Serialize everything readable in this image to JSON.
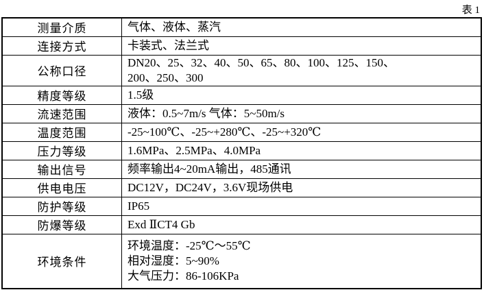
{
  "caption": "表 1",
  "rows": [
    {
      "label": "测量介质",
      "lines": [
        "气体、液体、蒸汽"
      ]
    },
    {
      "label": "连接方式",
      "lines": [
        "卡装式、法兰式"
      ]
    },
    {
      "label": "公称口径",
      "lines": [
        "DN20、25、32、40、50、65、80、100、125、150、",
        "200、250、300"
      ]
    },
    {
      "label": "精度等级",
      "lines": [
        "1.5级"
      ]
    },
    {
      "label": "流速范围",
      "lines": [
        "液体：0.5~7m/s 气体：5~50m/s"
      ]
    },
    {
      "label": "温度范围",
      "lines": [
        "-25~100℃、-25~+280℃、-25~+320℃"
      ]
    },
    {
      "label": "压力等级",
      "lines": [
        "1.6MPa、2.5MPa、4.0MPa"
      ]
    },
    {
      "label": "输出信号",
      "lines": [
        "频率输出4~20mA输出，485通讯"
      ]
    },
    {
      "label": "供电电压",
      "lines": [
        "DC12V，DC24V，3.6V现场供电"
      ]
    },
    {
      "label": "防护等级",
      "lines": [
        "IP65"
      ]
    },
    {
      "label": "防爆等级",
      "lines": [
        "Exd ⅡCT4 Gb"
      ]
    },
    {
      "label": "环境条件",
      "lines": [
        "环境温度：-25℃～55℃",
        "相对湿度：5~90%",
        "大气压力：86-106KPa"
      ]
    }
  ]
}
